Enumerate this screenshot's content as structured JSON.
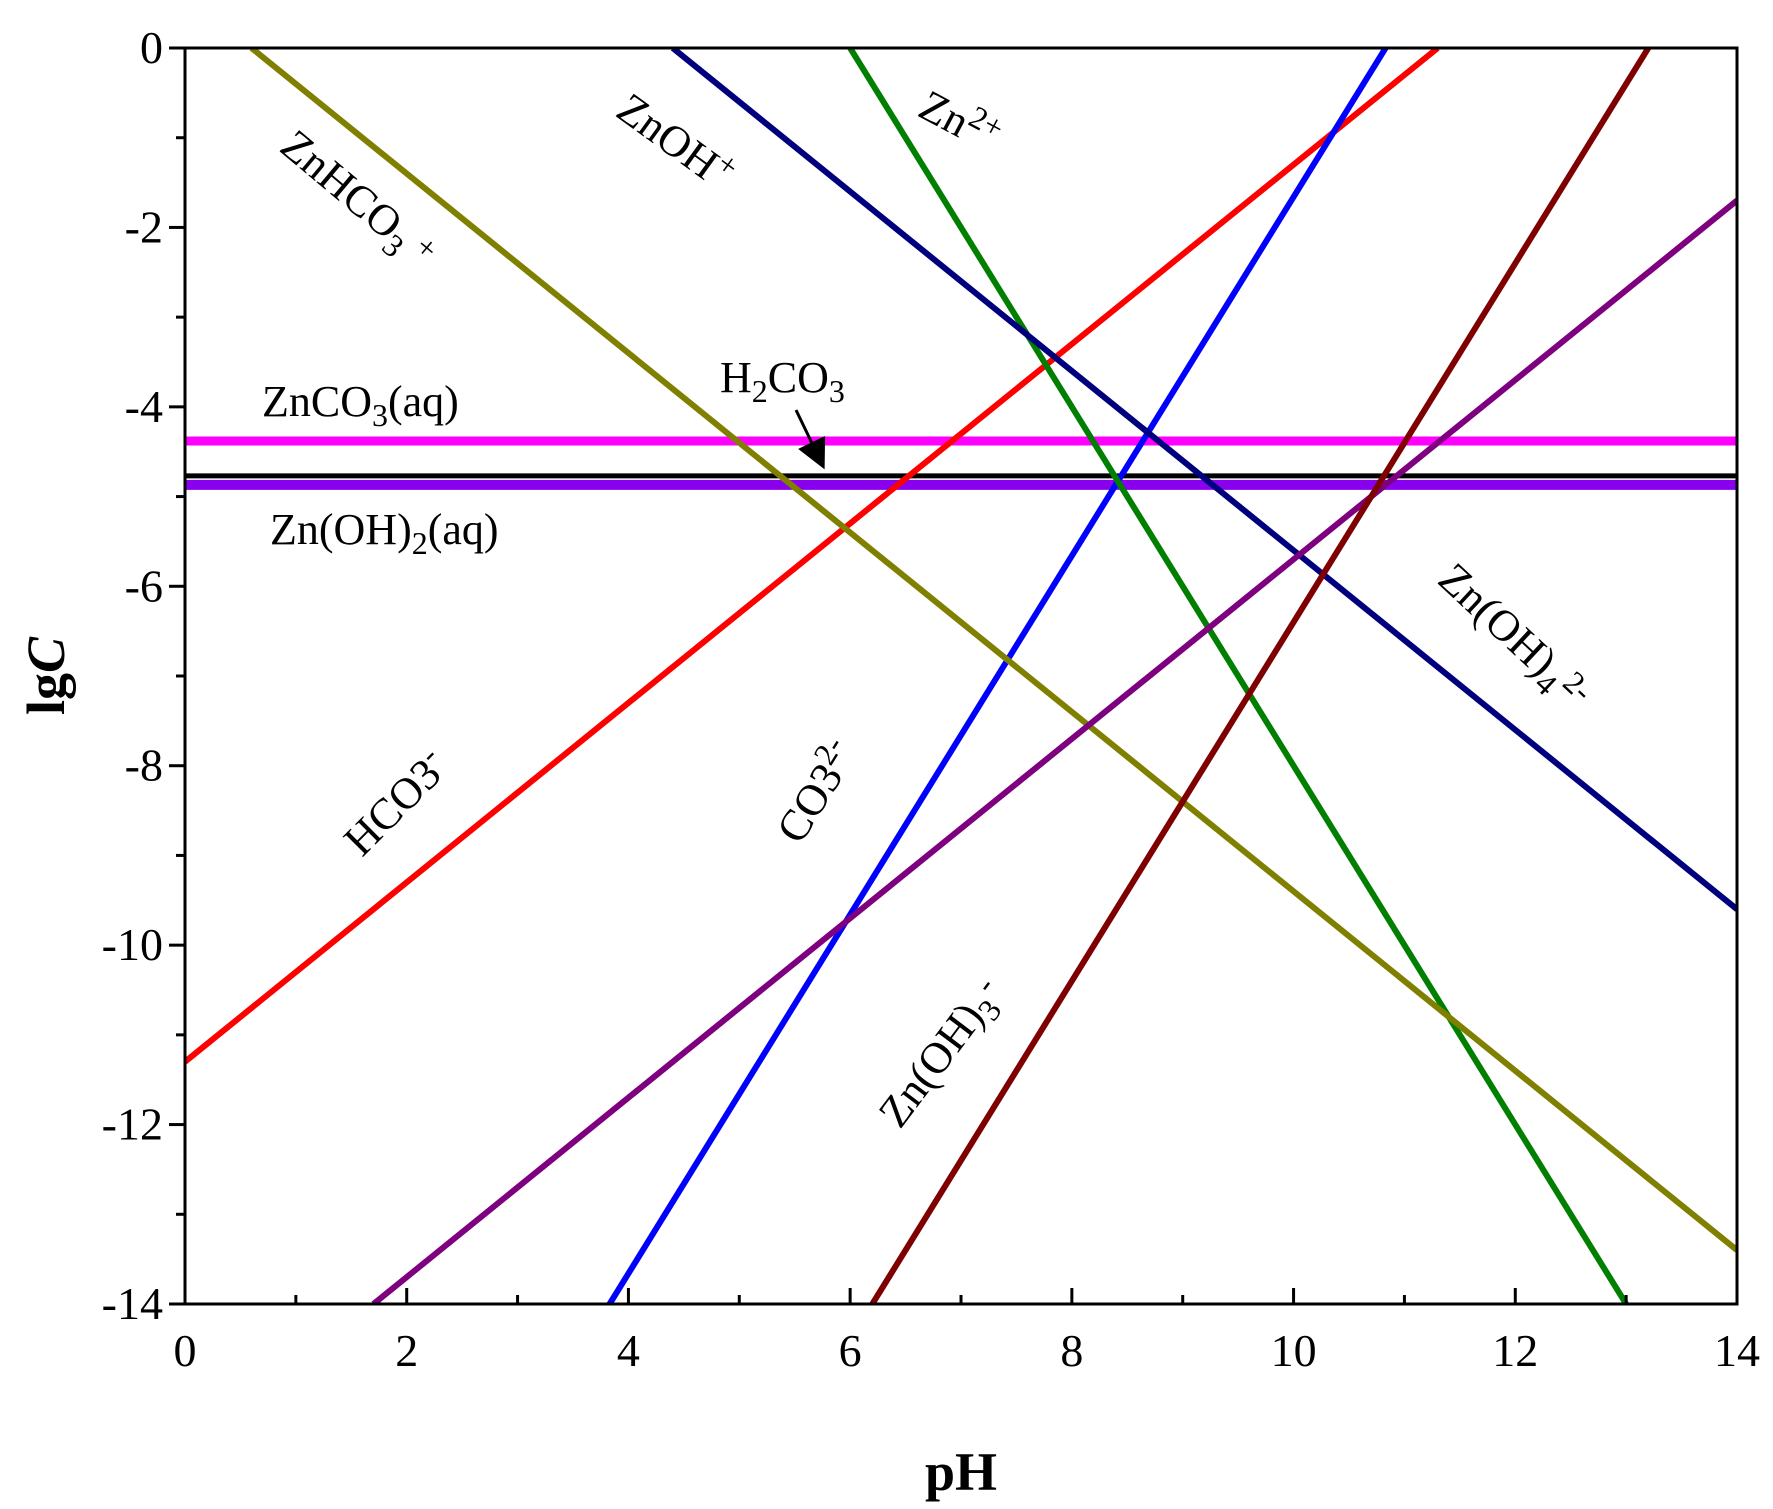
{
  "chart_data": {
    "type": "line",
    "xlabel": "pH",
    "ylabel": "lgC",
    "xlim": [
      0,
      14
    ],
    "ylim": [
      -14,
      0
    ],
    "x_ticks": [
      "0",
      "2",
      "4",
      "6",
      "8",
      "10",
      "12",
      "14"
    ],
    "y_ticks": [
      "0",
      "-2",
      "-4",
      "-6",
      "-8",
      "-10",
      "-12",
      "-14"
    ],
    "series": [
      {
        "id": "h2co3",
        "name": "H2CO3",
        "color": "#000000",
        "x": [
          0,
          14
        ],
        "y": [
          -4.77,
          -4.77
        ]
      },
      {
        "id": "zncrb",
        "name": "ZnCO3(aq)",
        "color": "#ff00ff",
        "x": [
          0,
          14
        ],
        "y": [
          -4.38,
          -4.38
        ]
      },
      {
        "id": "znoh2",
        "name": "Zn(OH)2(aq)",
        "color": "#8800ee",
        "x": [
          0,
          14
        ],
        "y": [
          -4.87,
          -4.87
        ]
      },
      {
        "id": "hco3",
        "name": "HCO3-",
        "color": "#ff0000",
        "x": [
          0,
          11.3
        ],
        "y": [
          -11.3,
          0
        ]
      },
      {
        "id": "co32",
        "name": "CO32-",
        "color": "#0000ff",
        "x": [
          3.83,
          10.83
        ],
        "y": [
          -14,
          0
        ]
      },
      {
        "id": "zn2",
        "name": "Zn2+",
        "color": "#007f00",
        "x": [
          6.0,
          13.0
        ],
        "y": [
          0,
          -14
        ]
      },
      {
        "id": "znoh",
        "name": "ZnOH+",
        "color": "#00007f",
        "x": [
          4.4,
          14
        ],
        "y": [
          0,
          -9.6
        ]
      },
      {
        "id": "znhco3",
        "name": "ZnHCO3+",
        "color": "#7f7f00",
        "x": [
          0.6,
          14
        ],
        "y": [
          0,
          -13.4
        ]
      },
      {
        "id": "znoh3",
        "name": "Zn(OH)3-",
        "color": "#7f007f",
        "x": [
          1.7,
          14
        ],
        "y": [
          -14,
          -1.7
        ]
      },
      {
        "id": "znoh4",
        "name": "Zn(OH)42-",
        "color": "#7f0000",
        "x": [
          6.2,
          13.2
        ],
        "y": [
          -14,
          0
        ]
      }
    ],
    "annotations": [
      {
        "id": "h2co3_label",
        "target_series": "H2CO3",
        "arrow": true
      }
    ]
  },
  "labels": {
    "zncrb": {
      "base1": "ZnCO",
      "sub": "3",
      "base2": "(aq)"
    },
    "znoh2": {
      "base1": "Zn(OH)",
      "sub": "2",
      "base2": "(aq)"
    },
    "h2co3": {
      "base1": "H",
      "sub1": "2",
      "base2": "CO",
      "sub2": "3"
    },
    "znhco3": {
      "base1": "ZnHCO",
      "sub": "3",
      "sup": "+"
    },
    "znoh": {
      "base1": "ZnOH",
      "sup": "+"
    },
    "zn2": {
      "base1": "Zn",
      "sup": "2+"
    },
    "znoh4": {
      "base1": "Zn(OH)",
      "sub": "4",
      "sup": "2-"
    },
    "hco3": {
      "base1": "HCO3",
      "sup": "-"
    },
    "co32": {
      "base1": "CO3",
      "sup": "2-"
    },
    "znoh3": {
      "base1": "Zn(OH)",
      "sub": "3",
      "sup": "-"
    }
  }
}
